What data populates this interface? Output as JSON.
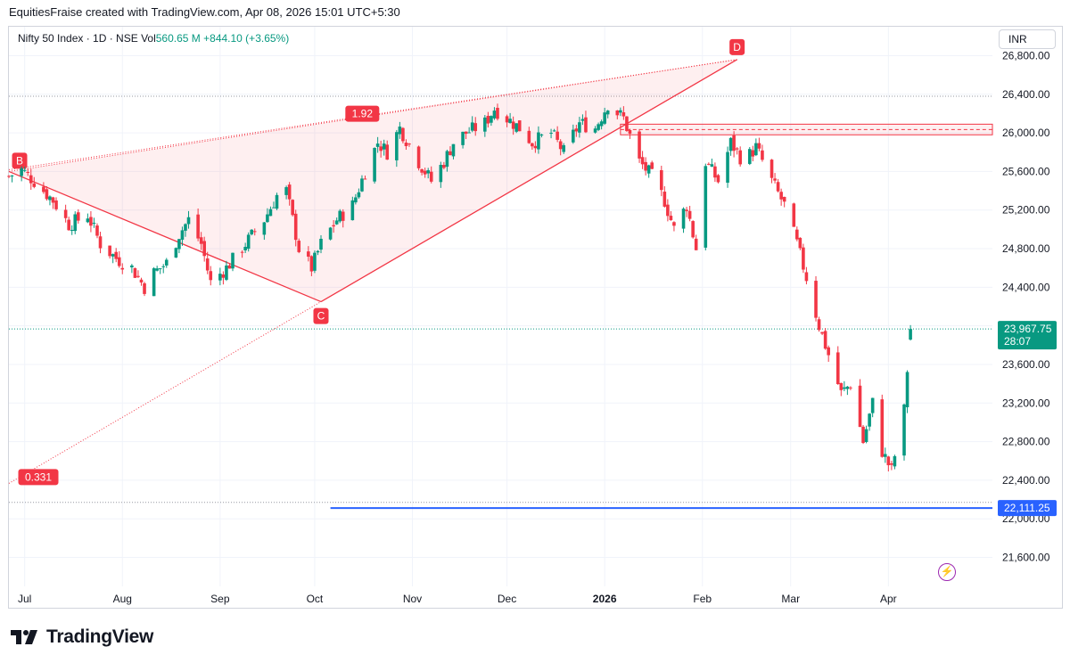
{
  "header": {
    "attribution": "EquitiesFraise created with TradingView.com, Apr 08, 2026 15:01 UTC+5:30"
  },
  "legend": {
    "symbol": "Nifty 50 Index · 1D · NSE",
    "vol_label": "Vol",
    "vol_value": "560.65 M",
    "change": "+844.10 (+3.65%)"
  },
  "currency_button": "INR",
  "brand": "TradingView",
  "colors": {
    "up": "#089981",
    "down": "#f23645",
    "pattern": "#f23645",
    "support": "#2962ff"
  },
  "chart_data": {
    "type": "candlestick",
    "ylim": [
      21300,
      27100
    ],
    "y_ticks": [
      21600,
      22000,
      22400,
      22800,
      23200,
      23600,
      24000,
      24400,
      24800,
      25200,
      25600,
      26000,
      26400,
      26800
    ],
    "y_tick_labels": [
      "21,600.00",
      "22,000.00",
      "22,400.00",
      "22,800.00",
      "23,200.00",
      "23,600.00",
      "24,000.00",
      "24,400.00",
      "24,800.00",
      "25,200.00",
      "25,600.00",
      "26,000.00",
      "26,400.00",
      "26,800.00"
    ],
    "x_labels": [
      {
        "label": "Jul",
        "date": "2025-07-01"
      },
      {
        "label": "Aug",
        "date": "2025-08-01"
      },
      {
        "label": "Sep",
        "date": "2025-09-01"
      },
      {
        "label": "Oct",
        "date": "2025-10-01"
      },
      {
        "label": "Nov",
        "date": "2025-11-01"
      },
      {
        "label": "Dec",
        "date": "2025-12-01"
      },
      {
        "label": "2026",
        "date": "2026-01-01",
        "bold": true
      },
      {
        "label": "Feb",
        "date": "2026-02-01"
      },
      {
        "label": "Mar",
        "date": "2026-03-01"
      },
      {
        "label": "Apr",
        "date": "2026-04-01"
      }
    ],
    "date_range": [
      "2025-06-26",
      "2026-05-04"
    ],
    "close_path": [
      [
        "2025-06-26",
        25550
      ],
      [
        "2025-06-30",
        25620
      ],
      [
        "2025-07-04",
        25500
      ],
      [
        "2025-07-10",
        25300
      ],
      [
        "2025-07-15",
        25050
      ],
      [
        "2025-07-21",
        25150
      ],
      [
        "2025-07-25",
        24850
      ],
      [
        "2025-07-30",
        24700
      ],
      [
        "2025-08-04",
        24600
      ],
      [
        "2025-08-08",
        24400
      ],
      [
        "2025-08-11",
        24550
      ],
      [
        "2025-08-15",
        24650
      ],
      [
        "2025-08-19",
        24950
      ],
      [
        "2025-08-22",
        25100
      ],
      [
        "2025-08-26",
        24850
      ],
      [
        "2025-08-29",
        24450
      ],
      [
        "2025-09-03",
        24600
      ],
      [
        "2025-09-09",
        24850
      ],
      [
        "2025-09-15",
        25100
      ],
      [
        "2025-09-19",
        25350
      ],
      [
        "2025-09-22",
        25400
      ],
      [
        "2025-09-26",
        24800
      ],
      [
        "2025-09-30",
        24600
      ],
      [
        "2025-10-03",
        24850
      ],
      [
        "2025-10-08",
        25100
      ],
      [
        "2025-10-13",
        25250
      ],
      [
        "2025-10-17",
        25600
      ],
      [
        "2025-10-21",
        25900
      ],
      [
        "2025-10-24",
        25800
      ],
      [
        "2025-10-28",
        26050
      ],
      [
        "2025-11-03",
        25700
      ],
      [
        "2025-11-07",
        25500
      ],
      [
        "2025-11-11",
        25700
      ],
      [
        "2025-11-14",
        25900
      ],
      [
        "2025-11-18",
        26000
      ],
      [
        "2025-11-24",
        26100
      ],
      [
        "2025-11-27",
        26250
      ],
      [
        "2025-12-01",
        26150
      ],
      [
        "2025-12-05",
        26050
      ],
      [
        "2025-12-09",
        25900
      ],
      [
        "2025-12-15",
        26000
      ],
      [
        "2025-12-19",
        25800
      ],
      [
        "2025-12-24",
        26100
      ],
      [
        "2025-12-29",
        26050
      ],
      [
        "2026-01-02",
        26300
      ],
      [
        "2026-01-07",
        26150
      ],
      [
        "2026-01-12",
        25700
      ],
      [
        "2026-01-16",
        25550
      ],
      [
        "2026-01-20",
        25300
      ],
      [
        "2026-01-23",
        25000
      ],
      [
        "2026-01-27",
        25250
      ],
      [
        "2026-01-30",
        24800
      ],
      [
        "2026-02-02",
        25700
      ],
      [
        "2026-02-06",
        25500
      ],
      [
        "2026-02-10",
        25900
      ],
      [
        "2026-02-14",
        25700
      ],
      [
        "2026-02-18",
        25850
      ],
      [
        "2026-02-23",
        25500
      ],
      [
        "2026-02-27",
        25250
      ],
      [
        "2026-03-03",
        24850
      ],
      [
        "2026-03-06",
        24500
      ],
      [
        "2026-03-10",
        24000
      ],
      [
        "2026-03-13",
        23700
      ],
      [
        "2026-03-17",
        23300
      ],
      [
        "2026-03-20",
        23400
      ],
      [
        "2026-03-24",
        22800
      ],
      [
        "2026-03-27",
        23200
      ],
      [
        "2026-03-30",
        22700
      ],
      [
        "2026-04-02",
        22500
      ],
      [
        "2026-04-06",
        23124
      ],
      [
        "2026-04-08",
        23967.75
      ]
    ],
    "pattern": {
      "points": [
        {
          "label": "B",
          "date": "2025-06-26",
          "value": 25600
        },
        {
          "label": "C",
          "date": "2025-10-03",
          "value": 24250
        },
        {
          "label": "D",
          "date": "2026-02-12",
          "value": 26760
        }
      ],
      "ratios": [
        "1.92",
        "0.331"
      ]
    },
    "resistance_zone": [
      25980,
      26090
    ],
    "price_label": {
      "value": "23,967.75",
      "countdown": "28:07",
      "price": 23967.75
    },
    "support_label": {
      "value": "22,111.25",
      "price": 22111.25
    },
    "dotted_levels": [
      26380,
      23967.75,
      22170
    ]
  }
}
